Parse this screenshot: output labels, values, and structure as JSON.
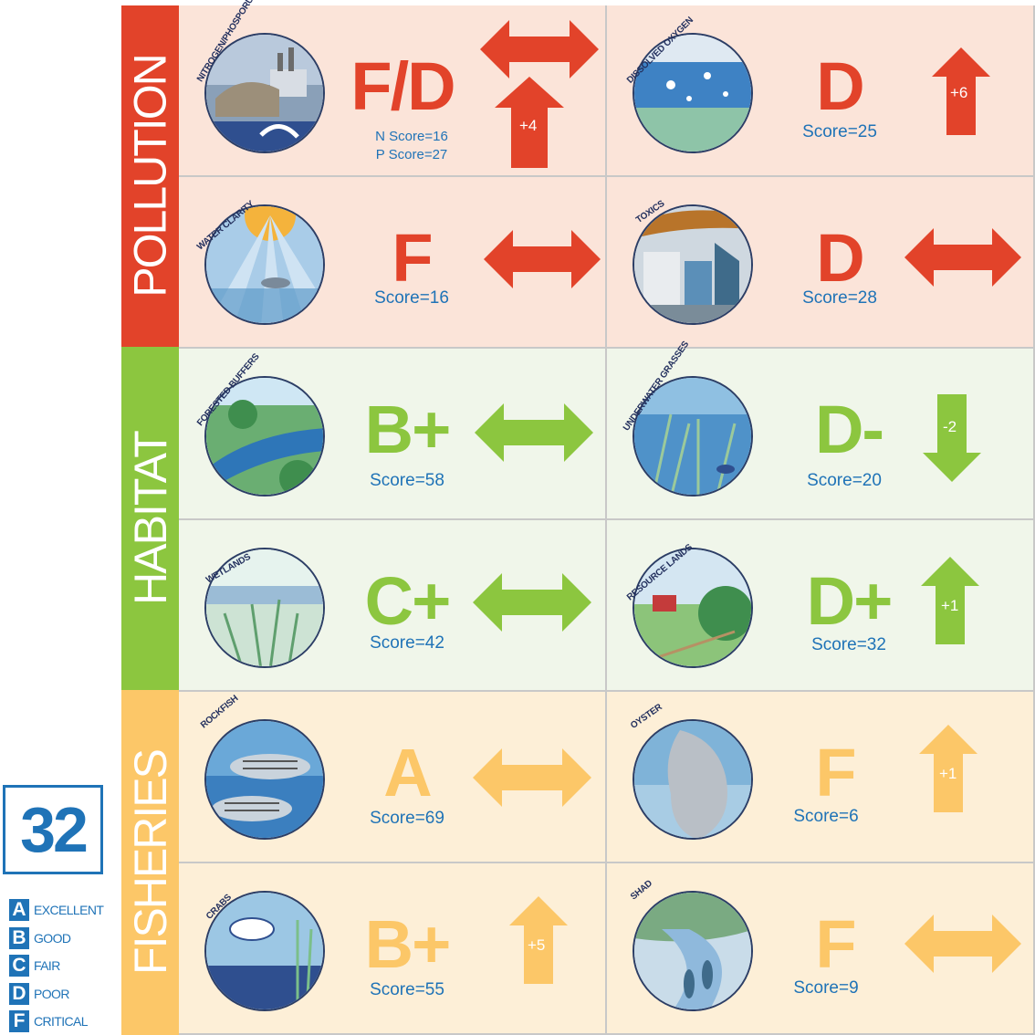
{
  "overall_score": "32",
  "legend": [
    {
      "letter": "A",
      "label": "EXCELLENT"
    },
    {
      "letter": "B",
      "label": "GOOD"
    },
    {
      "letter": "C",
      "label": "FAIR"
    },
    {
      "letter": "D",
      "label": "POOR"
    },
    {
      "letter": "F",
      "label": "CRITICAL"
    }
  ],
  "categories": [
    {
      "name": "POLLUTION",
      "color": "#e2432a"
    },
    {
      "name": "HABITAT",
      "color": "#8cc63f"
    },
    {
      "name": "FISHERIES",
      "color": "#fcc768"
    }
  ],
  "colors": {
    "pollution_cell": "#fbe4d9",
    "habitat_cell": "#f0f6ea",
    "fisheries_cell": "#fdefd7",
    "score_text": "#1f73b7"
  },
  "indicators": [
    {
      "title": "NITROGEN/PHOSPORUS",
      "grade": "F/D",
      "score_lines": [
        "N Score=16",
        "P Score=27"
      ],
      "trend": "steady",
      "trend2": "up",
      "trend2_label": "+4",
      "icon": "nitrogen-phosphorus-badge"
    },
    {
      "title": "DISSOLVED OXYGEN",
      "grade": "D",
      "score": "Score=25",
      "trend": "up",
      "trend_label": "+6",
      "icon": "dissolved-oxygen-badge"
    },
    {
      "title": "WATER CLARITY",
      "grade": "F",
      "score": "Score=16",
      "trend": "steady",
      "icon": "water-clarity-badge"
    },
    {
      "title": "TOXICS",
      "grade": "D",
      "score": "Score=28",
      "trend": "steady",
      "icon": "toxics-badge"
    },
    {
      "title": "FORESTED BUFFERS",
      "grade": "B+",
      "score": "Score=58",
      "trend": "steady",
      "icon": "forested-buffers-badge"
    },
    {
      "title": "UNDERWATER GRASSES",
      "grade": "D-",
      "score": "Score=20",
      "trend": "down",
      "trend_label": "-2",
      "icon": "underwater-grasses-badge"
    },
    {
      "title": "WETLANDS",
      "grade": "C+",
      "score": "Score=42",
      "trend": "steady",
      "icon": "wetlands-badge"
    },
    {
      "title": "RESOURCE LANDS",
      "grade": "D+",
      "score": "Score=32",
      "trend": "up",
      "trend_label": "+1",
      "icon": "resource-lands-badge"
    },
    {
      "title": "ROCKFISH",
      "grade": "A",
      "score": "Score=69",
      "trend": "steady",
      "icon": "rockfish-badge"
    },
    {
      "title": "OYSTER",
      "grade": "F",
      "score": "Score=6",
      "trend": "up",
      "trend_label": "+1",
      "icon": "oyster-badge"
    },
    {
      "title": "CRABS",
      "grade": "B+",
      "score": "Score=55",
      "trend": "up",
      "trend_label": "+5",
      "icon": "crabs-badge"
    },
    {
      "title": "SHAD",
      "grade": "F",
      "score": "Score=9",
      "trend": "steady",
      "icon": "shad-badge"
    }
  ]
}
